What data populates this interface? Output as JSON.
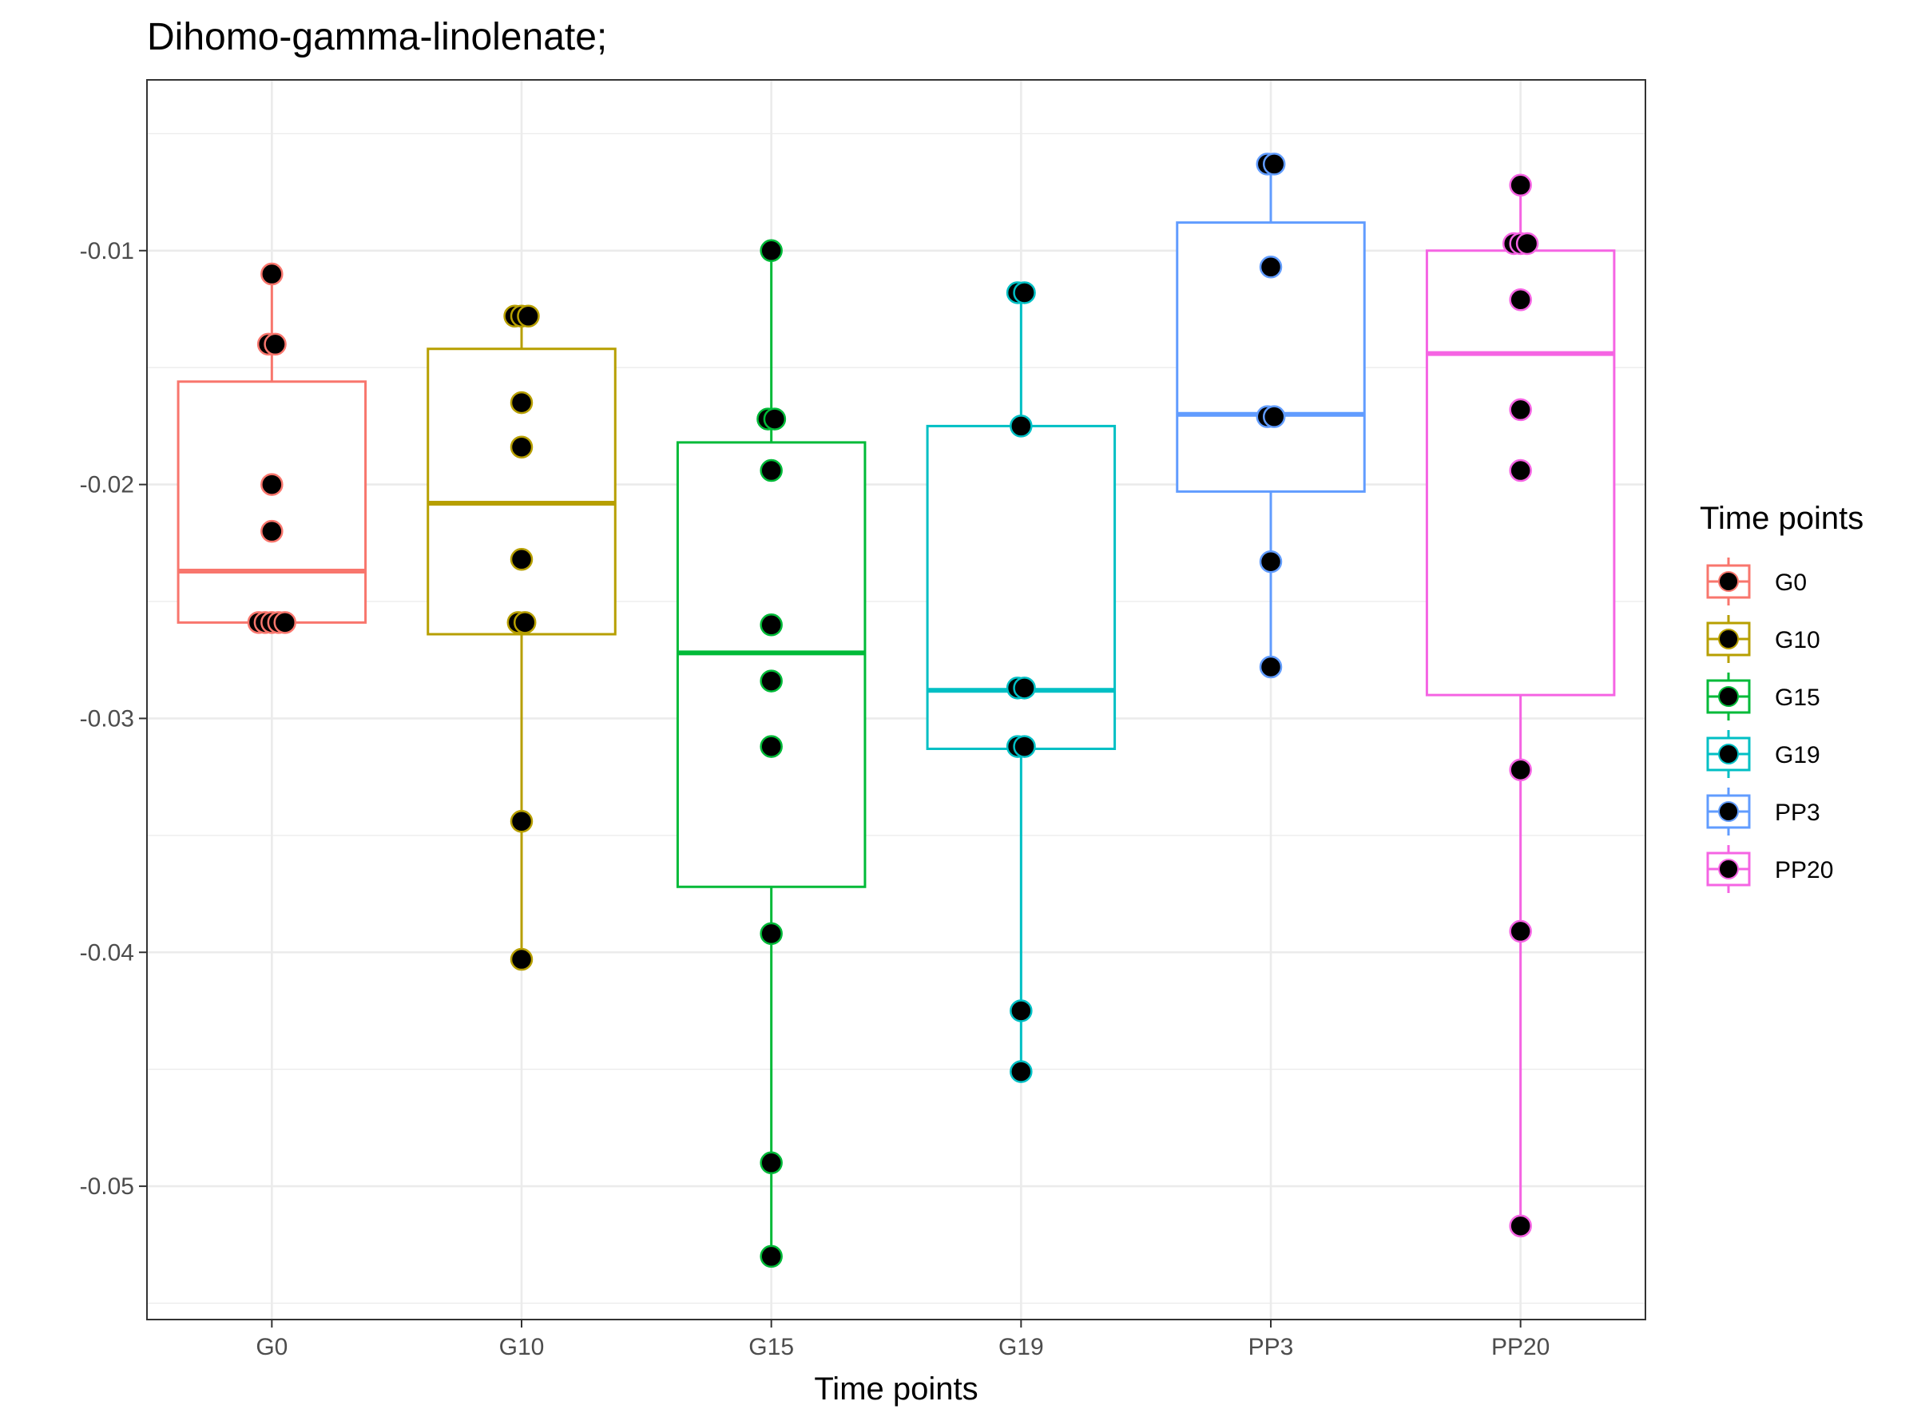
{
  "chart_data": {
    "type": "box",
    "title": "Dihomo-gamma-linolenate;",
    "xlabel": "Time points",
    "ylabel": "",
    "ylim": [
      -0.0557,
      -0.0027
    ],
    "yticks": [
      -0.05,
      -0.04,
      -0.03,
      -0.02,
      -0.01
    ],
    "ytick_labels": [
      "-0.05",
      "-0.04",
      "-0.03",
      "-0.02",
      "-0.01"
    ],
    "grid": true,
    "legend": {
      "title": "Time points",
      "position": "right"
    },
    "categories": [
      "G0",
      "G10",
      "G15",
      "G19",
      "PP3",
      "PP20"
    ],
    "series": [
      {
        "name": "G0",
        "color": "#F8766D",
        "box": {
          "min": -0.026,
          "q1": -0.0259,
          "median": -0.0237,
          "q3": -0.0156,
          "max": -0.011
        },
        "points": [
          {
            "x": -0.35,
            "y": -0.0259
          },
          {
            "x": -0.18,
            "y": -0.0259
          },
          {
            "x": 0.0,
            "y": -0.0259
          },
          {
            "x": 0.18,
            "y": -0.0259
          },
          {
            "x": 0.35,
            "y": -0.0259
          },
          {
            "x": 0.0,
            "y": -0.022
          },
          {
            "x": 0.0,
            "y": -0.02
          },
          {
            "x": -0.09,
            "y": -0.014
          },
          {
            "x": 0.09,
            "y": -0.014
          },
          {
            "x": 0.0,
            "y": -0.011
          }
        ]
      },
      {
        "name": "G10",
        "color": "#B79F00",
        "box": {
          "min": -0.0403,
          "q1": -0.0264,
          "median": -0.0208,
          "q3": -0.0142,
          "max": -0.0127
        },
        "points": [
          {
            "x": 0.0,
            "y": -0.0403
          },
          {
            "x": 0.0,
            "y": -0.0344
          },
          {
            "x": -0.09,
            "y": -0.0259
          },
          {
            "x": 0.09,
            "y": -0.0259
          },
          {
            "x": 0.0,
            "y": -0.0232
          },
          {
            "x": 0.0,
            "y": -0.0184
          },
          {
            "x": 0.0,
            "y": -0.0165
          },
          {
            "x": -0.18,
            "y": -0.0128
          },
          {
            "x": 0.0,
            "y": -0.0128
          },
          {
            "x": 0.18,
            "y": -0.0128
          }
        ]
      },
      {
        "name": "G15",
        "color": "#00BA38",
        "box": {
          "min": -0.053,
          "q1": -0.0372,
          "median": -0.0272,
          "q3": -0.0182,
          "max": -0.01
        },
        "points": [
          {
            "x": 0.0,
            "y": -0.053
          },
          {
            "x": 0.0,
            "y": -0.049
          },
          {
            "x": 0.0,
            "y": -0.0392
          },
          {
            "x": 0.0,
            "y": -0.0312
          },
          {
            "x": 0.0,
            "y": -0.0284
          },
          {
            "x": 0.0,
            "y": -0.026
          },
          {
            "x": 0.0,
            "y": -0.0194
          },
          {
            "x": -0.09,
            "y": -0.0172
          },
          {
            "x": 0.09,
            "y": -0.0172
          },
          {
            "x": 0.0,
            "y": -0.01
          }
        ]
      },
      {
        "name": "G19",
        "color": "#00BFC4",
        "box": {
          "min": -0.0451,
          "q1": -0.0313,
          "median": -0.0288,
          "q3": -0.0175,
          "max": -0.0118
        },
        "points": [
          {
            "x": 0.0,
            "y": -0.0451
          },
          {
            "x": 0.0,
            "y": -0.0425
          },
          {
            "x": -0.09,
            "y": -0.0312
          },
          {
            "x": 0.09,
            "y": -0.0312
          },
          {
            "x": -0.09,
            "y": -0.0287
          },
          {
            "x": 0.09,
            "y": -0.0287
          },
          {
            "x": 0.0,
            "y": -0.0175
          },
          {
            "x": -0.09,
            "y": -0.0118
          },
          {
            "x": 0.09,
            "y": -0.0118
          }
        ]
      },
      {
        "name": "PP3",
        "color": "#619CFF",
        "box": {
          "min": -0.0278,
          "q1": -0.0203,
          "median": -0.017,
          "q3": -0.0088,
          "max": -0.0063
        },
        "points": [
          {
            "x": 0.0,
            "y": -0.0278
          },
          {
            "x": 0.0,
            "y": -0.0233
          },
          {
            "x": -0.09,
            "y": -0.0171
          },
          {
            "x": 0.09,
            "y": -0.0171
          },
          {
            "x": 0.0,
            "y": -0.0107
          },
          {
            "x": -0.09,
            "y": -0.0063
          },
          {
            "x": 0.09,
            "y": -0.0063
          }
        ]
      },
      {
        "name": "PP20",
        "color": "#F564E3",
        "box": {
          "min": -0.0517,
          "q1": -0.029,
          "median": -0.0144,
          "q3": -0.01,
          "max": -0.0072
        },
        "points": [
          {
            "x": 0.0,
            "y": -0.0517
          },
          {
            "x": 0.0,
            "y": -0.0391
          },
          {
            "x": 0.0,
            "y": -0.0322
          },
          {
            "x": 0.0,
            "y": -0.0194
          },
          {
            "x": 0.0,
            "y": -0.0168
          },
          {
            "x": 0.0,
            "y": -0.0121
          },
          {
            "x": -0.18,
            "y": -0.0097
          },
          {
            "x": 0.0,
            "y": -0.0097
          },
          {
            "x": 0.18,
            "y": -0.0097
          },
          {
            "x": 0.0,
            "y": -0.0072
          }
        ]
      }
    ]
  }
}
